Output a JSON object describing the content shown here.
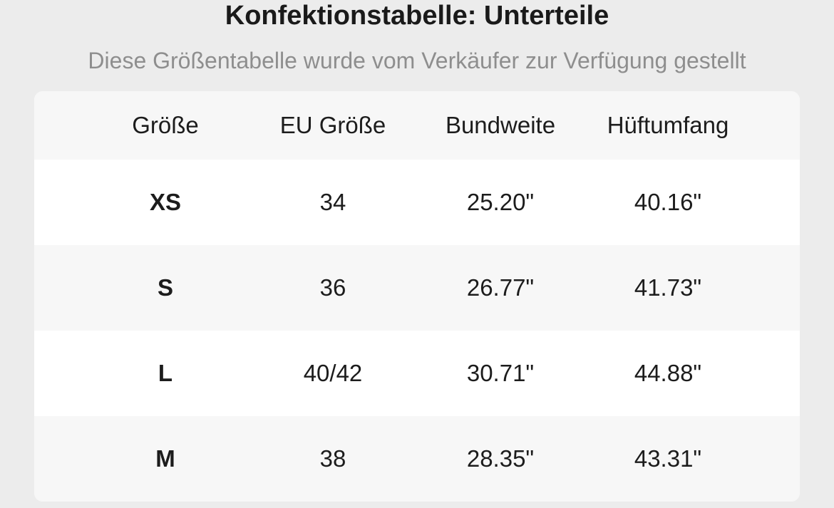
{
  "title": "Konfektionstabelle: Unterteile",
  "subtitle": "Diese Größentabelle wurde vom Verkäufer zur Verfügung gestellt",
  "table": {
    "headers": [
      "Größe",
      "EU Größe",
      "Bundweite",
      "Hüftumfang"
    ],
    "rows": [
      [
        "XS",
        "34",
        "25.20\"",
        "40.16\""
      ],
      [
        "S",
        "36",
        "26.77\"",
        "41.73\""
      ],
      [
        "L",
        "40/42",
        "30.71\"",
        "44.88\""
      ],
      [
        "M",
        "38",
        "28.35\"",
        "43.31\""
      ]
    ]
  },
  "colors": {
    "background": "#ececec",
    "row_light": "#ffffff",
    "row_gray": "#f7f7f7",
    "title_text": "#1a1a1a",
    "subtitle_text": "#8e8e8e"
  }
}
